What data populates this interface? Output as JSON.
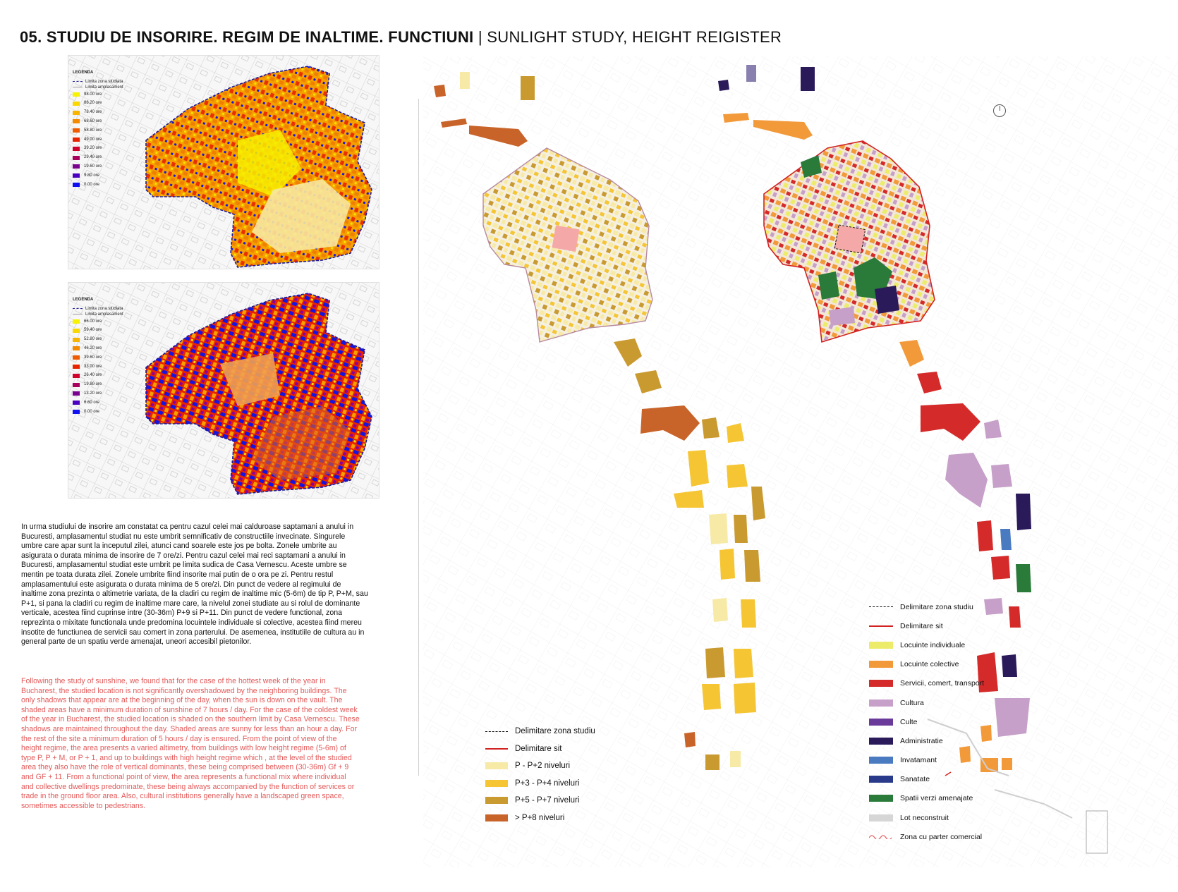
{
  "header": {
    "title_bold": "05. STUDIU DE INSORIRE. REGIM DE INALTIME. FUNCTIUNI",
    "separator": " | ",
    "title_light": "SUNLIGHT STUDY, HEIGHT REIGISTER"
  },
  "sun_map_hot": {
    "legend_title": "LEGENDA",
    "line_items": [
      "Limita zona studiata",
      "Limita amplasament"
    ],
    "items": [
      {
        "label": "98.00 ore",
        "color": "#f6f200"
      },
      {
        "label": "88.20 ore",
        "color": "#f8d800"
      },
      {
        "label": "78.40 ore",
        "color": "#f7b400"
      },
      {
        "label": "68.60 ore",
        "color": "#f48a00"
      },
      {
        "label": "58.80 ore",
        "color": "#ef5c00"
      },
      {
        "label": "49.00 ore",
        "color": "#e82400"
      },
      {
        "label": "39.20 ore",
        "color": "#d0002c"
      },
      {
        "label": "29.40 ore",
        "color": "#a8005c"
      },
      {
        "label": "19.60 ore",
        "color": "#7a0090"
      },
      {
        "label": "9.80 ore",
        "color": "#4a00c0"
      },
      {
        "label": "0.00 ore",
        "color": "#1010f0"
      }
    ]
  },
  "sun_map_cold": {
    "legend_title": "LEGENDA",
    "line_items": [
      "Limita zona studiata",
      "Limita amplasament"
    ],
    "items": [
      {
        "label": "66.00 ore",
        "color": "#f6f200"
      },
      {
        "label": "59.40 ore",
        "color": "#f8d800"
      },
      {
        "label": "52.80 ore",
        "color": "#f7b400"
      },
      {
        "label": "46.20 ore",
        "color": "#f48a00"
      },
      {
        "label": "39.60 ore",
        "color": "#ef5c00"
      },
      {
        "label": "33.00 ore",
        "color": "#e82400"
      },
      {
        "label": "26.40 ore",
        "color": "#d0002c"
      },
      {
        "label": "19.80 ore",
        "color": "#a8005c"
      },
      {
        "label": "13.20 ore",
        "color": "#7a0090"
      },
      {
        "label": "6.60 ore",
        "color": "#4a00c0"
      },
      {
        "label": "0.00 ore",
        "color": "#1010f0"
      }
    ]
  },
  "text": {
    "romanian": "In urma studiului de insorire am constatat ca pentru cazul celei mai calduroase saptamani a anului in\nBucuresti,  amplasamentul studiat nu este umbrit semnificativ de constructiile invecinate.  Singurele\numbre care apar sunt la inceputul zilei, atunci cand soarele este jos pe bolta.  Zonele umbrite au\nasigurata o durata minima de insorire de 7 ore/zi. Pentru cazul celei mai reci saptamani a anului in\nBucuresti,  amplasamentul studiat este umbrit pe limita sudica de Casa Vernescu. Aceste umbre se\nmentin pe toata durata zilei. Zonele umbrite fiind insorite mai putin de o ora pe zi. Pentru restul\namplasamentului este asigurata o durata minima de 5 ore/zi. Din punct de vedere al regimului de\ninaltime zona prezinta o altimetrie variata, de la cladiri cu regim de inaltime mic (5-6m) de tip P, P+M, sau\nP+1, si pana la cladiri cu regim de inaltime mare care, la nivelul zonei studiate au si rolul de dominante\nverticale, acestea fiind cuprinse intre (30-36m) P+9 si P+11. Din punct de vedere functional, zona\nreprezinta o mixitate functionala unde predomina locuintele individuale si colective, acestea fiind mereu\ninsotite de functiunea de servicii sau comert in zona parterului. De asemenea, institutiile de cultura au in\ngeneral parte de un spatiu verde amenajat, uneori accesibil pietonilor.",
    "english": "Following the study of sunshine, we found that for the case of the hottest week of the year in\nBucharest, the studied location is not significantly overshadowed by the neighboring buildings. The\nonly shadows that appear are at the beginning of the day, when the sun is down on the vault. The\nshaded areas have a minimum duration of sunshine of 7 hours / day. For the case of the coldest week\nof the year in Bucharest, the studied location is shaded on the southern limit by Casa Vernescu. These\nshadows are maintained throughout the day. Shaded areas are sunny for less than an hour a day. For\nthe rest of the site a minimum duration of 5 hours / day is ensured. From the point of view of the\nheight regime, the area presents a varied altimetry, from buildings with low height regime (5-6m) of\ntype P, P + M, or P + 1, and up to buildings with high height regime which , at the level of the studied\narea they also have the role of vertical dominants, these being comprised between (30-36m) Gf + 9\nand GF + 11. From a functional point of view, the area represents a functional mix where individual\nand collective dwellings predominate, these being always accompanied by the function of services or\ntrade in the ground floor area. Also, cultural institutions generally have a landscaped green space,\nsometimes accessible to pedestrians."
  },
  "legend_height": {
    "items": [
      {
        "label": "Delimitare zona studiu",
        "type": "dash",
        "color": "#111111"
      },
      {
        "label": "Delimitare sit",
        "type": "line",
        "color": "#d22222"
      },
      {
        "label": "P - P+2 niveluri",
        "type": "box",
        "color": "#f7eaa6"
      },
      {
        "label": "P+3 - P+4 niveluri",
        "type": "box",
        "color": "#f5c534"
      },
      {
        "label": "P+5 - P+7 niveluri",
        "type": "box",
        "color": "#c99a30"
      },
      {
        "label": "> P+8 niveluri",
        "type": "box",
        "color": "#c8642a"
      }
    ]
  },
  "legend_function": {
    "items": [
      {
        "label": "Delimitare zona studiu",
        "type": "dash",
        "color": "#111111"
      },
      {
        "label": "Delimitare sit",
        "type": "line",
        "color": "#d22222"
      },
      {
        "label": "Locuinte individuale",
        "type": "box",
        "color": "#ecec6a"
      },
      {
        "label": "Locuinte colective",
        "type": "box",
        "color": "#f29a3a"
      },
      {
        "label": "Servicii, comert, transport",
        "type": "box",
        "color": "#d42a2a"
      },
      {
        "label": "Cultura",
        "type": "box",
        "color": "#c6a0c8"
      },
      {
        "label": "Culte",
        "type": "box",
        "color": "#6a3a9a"
      },
      {
        "label": "Administratie",
        "type": "box",
        "color": "#2a1a5a"
      },
      {
        "label": "Invatamant",
        "type": "box",
        "color": "#4a7ac0"
      },
      {
        "label": "Sanatate",
        "type": "box",
        "color": "#2a3a8a"
      },
      {
        "label": "Spatii verzi amenajate",
        "type": "box",
        "color": "#2a7a3a"
      },
      {
        "label": "Lot neconstruit",
        "type": "box",
        "color": "#d6d6d6"
      },
      {
        "label": "Zona cu parter comercial",
        "type": "wave",
        "color": "#e06060"
      }
    ]
  }
}
